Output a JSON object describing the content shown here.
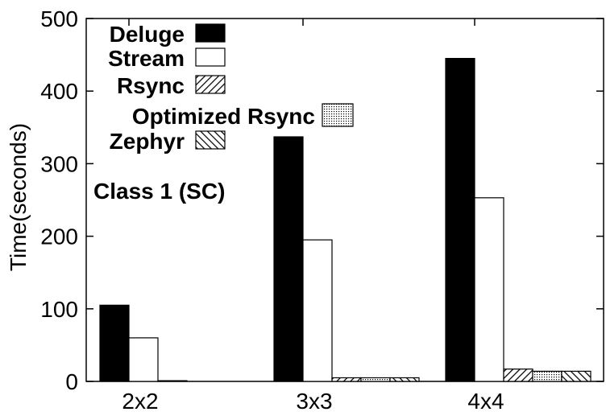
{
  "chart_data": {
    "type": "bar",
    "ylabel": "Time(seconds)",
    "ylim": [
      0,
      500
    ],
    "yticks": [
      0,
      100,
      200,
      300,
      400,
      500
    ],
    "categories": [
      "2x2",
      "3x3",
      "4x4"
    ],
    "series": [
      {
        "name": "Deluge",
        "values": [
          105,
          337,
          445
        ],
        "pattern": "solid-black"
      },
      {
        "name": "Stream",
        "values": [
          60,
          195,
          253
        ],
        "pattern": "white"
      },
      {
        "name": "Rsync",
        "values": [
          1,
          5,
          17
        ],
        "pattern": "diagonal-hatch"
      },
      {
        "name": "Optimized Rsync",
        "values": [
          0,
          5,
          14
        ],
        "pattern": "dots"
      },
      {
        "name": "Zephyr",
        "values": [
          0,
          5,
          14
        ],
        "pattern": "reverse-diagonal-hatch"
      }
    ],
    "annotation": "Class 1 (SC)",
    "legend_position": "top-left",
    "grid": false
  }
}
